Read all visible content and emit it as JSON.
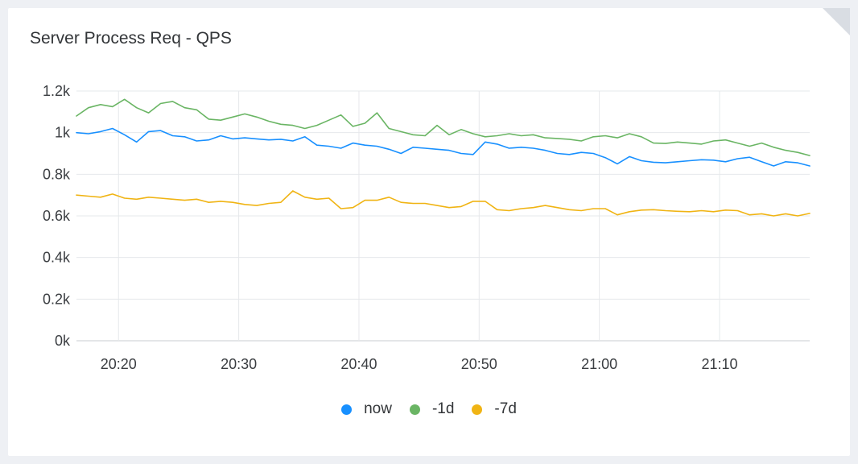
{
  "panel": {
    "title": "Server Process Req - QPS"
  },
  "chart_data": {
    "type": "line",
    "title": "Server Process Req - QPS",
    "xlabel": "",
    "ylabel": "",
    "x_range": [
      "20:16:30",
      "21:17:30"
    ],
    "x_ticks": [
      "20:20",
      "20:30",
      "20:40",
      "20:50",
      "21:00",
      "21:10"
    ],
    "y_ticks": [
      "0k",
      "0.2k",
      "0.4k",
      "0.6k",
      "0.8k",
      "1k",
      "1.2k"
    ],
    "ylim": [
      0,
      1200
    ],
    "grid": true,
    "legend_position": "bottom",
    "x": [
      "20:16:30",
      "20:17:30",
      "20:18:30",
      "20:19:30",
      "20:20:30",
      "20:21:30",
      "20:22:30",
      "20:23:30",
      "20:24:30",
      "20:25:30",
      "20:26:30",
      "20:27:30",
      "20:28:30",
      "20:29:30",
      "20:30:30",
      "20:31:30",
      "20:32:30",
      "20:33:30",
      "20:34:30",
      "20:35:30",
      "20:36:30",
      "20:37:30",
      "20:38:30",
      "20:39:30",
      "20:40:30",
      "20:41:30",
      "20:42:30",
      "20:43:30",
      "20:44:30",
      "20:45:30",
      "20:46:30",
      "20:47:30",
      "20:48:30",
      "20:49:30",
      "20:50:30",
      "20:51:30",
      "20:52:30",
      "20:53:30",
      "20:54:30",
      "20:55:30",
      "20:56:30",
      "20:57:30",
      "20:58:30",
      "20:59:30",
      "21:00:30",
      "21:01:30",
      "21:02:30",
      "21:03:30",
      "21:04:30",
      "21:05:30",
      "21:06:30",
      "21:07:30",
      "21:08:30",
      "21:09:30",
      "21:10:30",
      "21:11:30",
      "21:12:30",
      "21:13:30",
      "21:14:30",
      "21:15:30",
      "21:16:30",
      "21:17:30"
    ],
    "series": [
      {
        "name": "now",
        "color": "#1890ff",
        "values": [
          1000,
          995,
          1005,
          1020,
          990,
          955,
          1005,
          1010,
          985,
          980,
          960,
          965,
          985,
          970,
          975,
          970,
          965,
          968,
          960,
          980,
          940,
          935,
          925,
          950,
          940,
          935,
          920,
          900,
          930,
          925,
          920,
          915,
          900,
          895,
          955,
          945,
          925,
          930,
          925,
          915,
          900,
          895,
          905,
          900,
          880,
          850,
          885,
          865,
          858,
          855,
          860,
          865,
          870,
          868,
          860,
          875,
          882,
          860,
          840,
          860,
          855,
          840
        ]
      },
      {
        "name": "-1d",
        "color": "#6ab564",
        "values": [
          1080,
          1120,
          1135,
          1125,
          1160,
          1120,
          1095,
          1140,
          1150,
          1120,
          1110,
          1065,
          1060,
          1075,
          1090,
          1075,
          1055,
          1040,
          1035,
          1020,
          1035,
          1060,
          1085,
          1030,
          1045,
          1095,
          1020,
          1005,
          990,
          985,
          1035,
          990,
          1015,
          995,
          980,
          985,
          995,
          985,
          990,
          975,
          972,
          968,
          960,
          980,
          985,
          975,
          995,
          980,
          950,
          948,
          955,
          950,
          945,
          960,
          965,
          950,
          935,
          950,
          930,
          915,
          905,
          890
        ]
      },
      {
        "name": "-7d",
        "color": "#f0b414",
        "values": [
          700,
          695,
          690,
          705,
          685,
          680,
          690,
          685,
          680,
          675,
          680,
          665,
          670,
          665,
          655,
          650,
          660,
          665,
          720,
          690,
          680,
          685,
          635,
          640,
          675,
          675,
          690,
          665,
          660,
          660,
          650,
          640,
          645,
          670,
          670,
          630,
          625,
          635,
          640,
          650,
          640,
          630,
          625,
          635,
          635,
          605,
          620,
          628,
          630,
          625,
          622,
          620,
          625,
          620,
          628,
          625,
          605,
          610,
          600,
          610,
          600,
          612
        ]
      }
    ]
  }
}
